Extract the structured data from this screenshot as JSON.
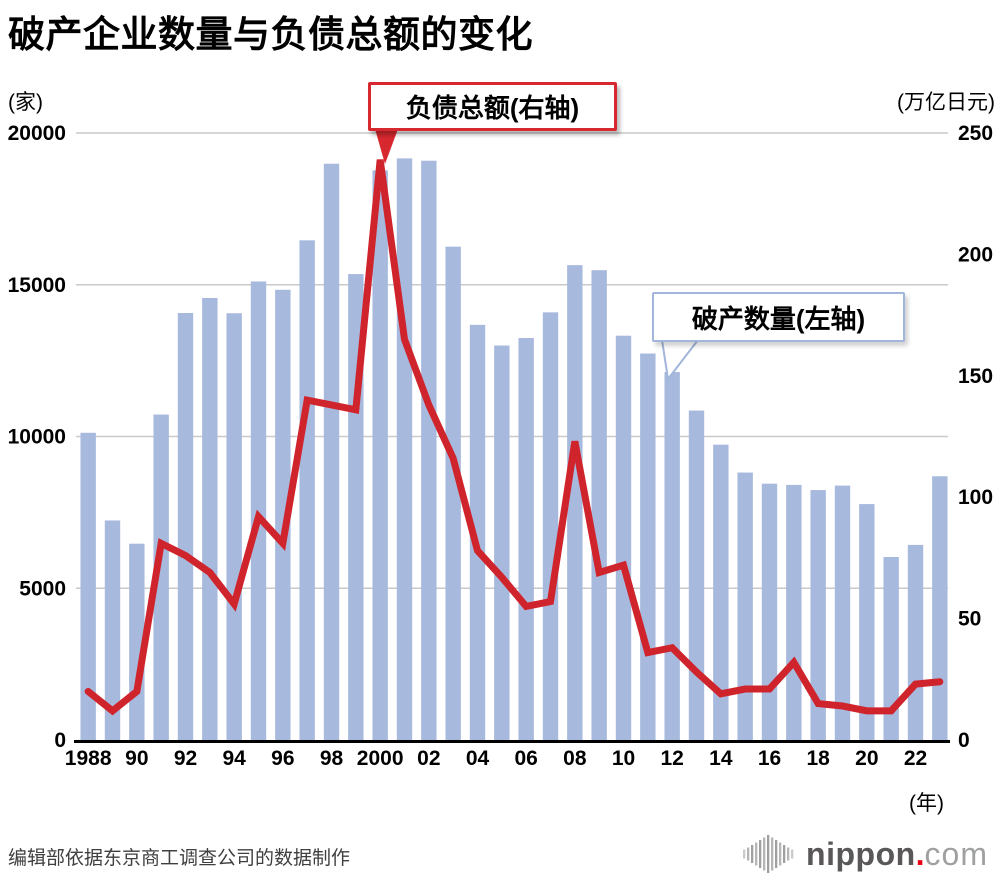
{
  "title": "破产企业数量与负债总额的变化",
  "axes": {
    "left_unit": "(家)",
    "right_unit": "(万亿日元)",
    "x_unit": "(年)",
    "left_ticks": [
      "20000",
      "15000",
      "10000",
      "5000",
      "0"
    ],
    "right_ticks": [
      "250",
      "200",
      "150",
      "100",
      "50",
      "0"
    ],
    "x_tick_labels": [
      "1988",
      "90",
      "92",
      "94",
      "96",
      "98",
      "2000",
      "02",
      "04",
      "06",
      "08",
      "10",
      "12",
      "14",
      "16",
      "18",
      "20",
      "22"
    ]
  },
  "callouts": {
    "debt_label": "负债总额(右轴)",
    "bankruptcy_label": "破产数量(左轴)"
  },
  "source": "编辑部依据东京商工调查公司的数据制作",
  "logo": {
    "icon": "equalizer-bars-icon",
    "name": "nippon",
    "dot": ".",
    "tld": "com"
  },
  "colors": {
    "bar": "#a8b9de",
    "line": "#d0242c",
    "grid": "#c9c9c9",
    "axis": "#000000",
    "callout_red_border": "#d7282f",
    "callout_blue_border": "#a2b5da",
    "logo_dark_gray": "#595757",
    "logo_light_gray": "#9fa0a0",
    "logo_dot_red": "#e60012"
  },
  "chart_data": {
    "type": "bar+line",
    "x": [
      1988,
      1989,
      1990,
      1991,
      1992,
      1993,
      1994,
      1995,
      1996,
      1997,
      1998,
      1999,
      2000,
      2001,
      2002,
      2003,
      2004,
      2005,
      2006,
      2007,
      2008,
      2009,
      2010,
      2011,
      2012,
      2013,
      2014,
      2015,
      2016,
      2017,
      2018,
      2019,
      2020,
      2021,
      2022,
      2023
    ],
    "series": [
      {
        "name": "破产数量(左轴)",
        "type": "bar",
        "axis": "left",
        "values": [
          10122,
          7234,
          6468,
          10723,
          14069,
          14564,
          14061,
          15108,
          14834,
          16464,
          18988,
          15352,
          18769,
          19164,
          19087,
          16255,
          13679,
          12998,
          13245,
          14091,
          15646,
          15480,
          13321,
          12734,
          12124,
          10855,
          9731,
          8812,
          8446,
          8405,
          8235,
          8383,
          7773,
          6030,
          6428,
          8690
        ]
      },
      {
        "name": "负债总额(右轴)",
        "type": "line",
        "axis": "right",
        "values": [
          20,
          12,
          20,
          81,
          76,
          69,
          56,
          92,
          81,
          140,
          138,
          136,
          239,
          165,
          138,
          116,
          78,
          67,
          55,
          57,
          123,
          69,
          72,
          36,
          38,
          28,
          19,
          21,
          21,
          32,
          15,
          14,
          12,
          12,
          23,
          24
        ]
      }
    ],
    "left_ylim": [
      0,
      20000
    ],
    "right_ylim": [
      0,
      250
    ],
    "grid": "horizontal-at-left-ticks",
    "legend_position": "callouts-inside-plot"
  }
}
